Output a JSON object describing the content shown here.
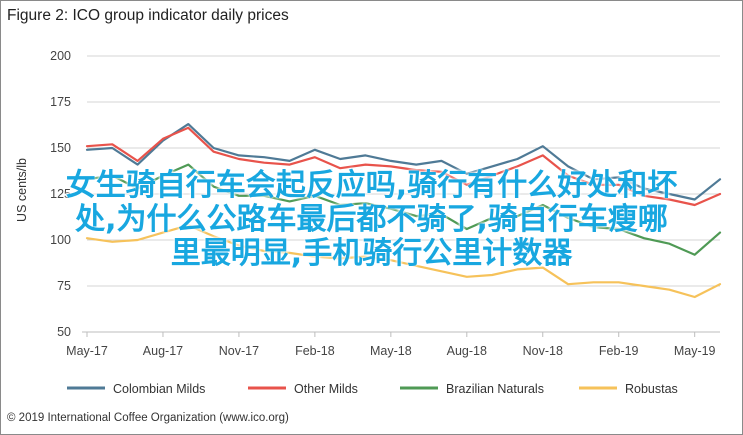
{
  "figure": {
    "title": "Figure 2: ICO group indicator daily prices",
    "copyright": "© 2019 International Coffee Organization (www.ico.org)",
    "watermark_lines": [
      "女生骑自行车会起反应吗,骑行有什么好处和坏",
      "处,为什么公路车最后都不骑了,骑自行车瘦哪",
      "里最明显,手机骑行公里计数器"
    ]
  },
  "chart_data": {
    "type": "line",
    "title": "Figure 2: ICO group indicator daily prices",
    "xlabel": "",
    "ylabel": "US cents/lb",
    "ylim": [
      50,
      200
    ],
    "yticks": [
      50,
      75,
      100,
      125,
      150,
      175,
      200
    ],
    "xlim": [
      0,
      25
    ],
    "xticks": [
      {
        "label": "May-17",
        "x": 0
      },
      {
        "label": "Aug-17",
        "x": 3
      },
      {
        "label": "Nov-17",
        "x": 6
      },
      {
        "label": "Feb-18",
        "x": 9
      },
      {
        "label": "May-18",
        "x": 12
      },
      {
        "label": "Aug-18",
        "x": 15
      },
      {
        "label": "Nov-18",
        "x": 18
      },
      {
        "label": "Feb-19",
        "x": 21
      },
      {
        "label": "May-19",
        "x": 24
      }
    ],
    "grid": true,
    "legend_position": "bottom",
    "x": [
      0,
      1,
      2,
      3,
      4,
      5,
      6,
      7,
      8,
      9,
      10,
      11,
      12,
      13,
      14,
      15,
      16,
      17,
      18,
      19,
      20,
      21,
      22,
      23,
      24,
      25
    ],
    "series": [
      {
        "name": "Colombian Milds",
        "color": "#4f7a96",
        "values": [
          149,
          150,
          141,
          154,
          163,
          150,
          146,
          145,
          143,
          149,
          144,
          146,
          143,
          141,
          143,
          136,
          140,
          144,
          151,
          140,
          133,
          134,
          128,
          125,
          122,
          133
        ]
      },
      {
        "name": "Other Milds",
        "color": "#e8534b",
        "values": [
          151,
          152,
          143,
          155,
          161,
          148,
          144,
          142,
          141,
          145,
          139,
          141,
          140,
          138,
          137,
          130,
          135,
          140,
          146,
          135,
          130,
          130,
          124,
          122,
          119,
          125
        ]
      },
      {
        "name": "Brazilian Naturals",
        "color": "#4f9a55",
        "values": [
          133,
          135,
          128,
          135,
          141,
          129,
          124,
          124,
          121,
          124,
          119,
          120,
          117,
          113,
          114,
          106,
          112,
          113,
          119,
          112,
          107,
          106,
          101,
          98,
          92,
          104
        ]
      },
      {
        "name": "Robustas",
        "color": "#f6c25a",
        "values": [
          101,
          99,
          100,
          104,
          108,
          102,
          97,
          94,
          93,
          91,
          90,
          91,
          89,
          86,
          83,
          80,
          81,
          84,
          85,
          76,
          77,
          77,
          75,
          73,
          69,
          76
        ]
      }
    ]
  }
}
